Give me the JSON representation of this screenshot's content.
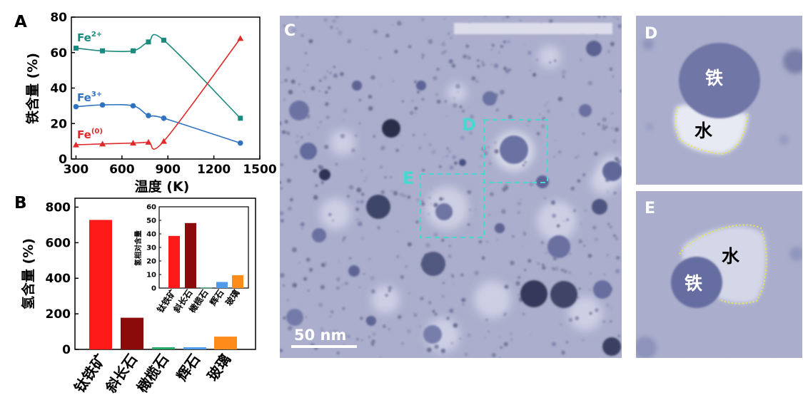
{
  "colors": {
    "fe2": "#1a8a7e",
    "fe3": "#2f72c0",
    "fe0": "#e02a2a",
    "micrograph_bg": "#a7abcb",
    "dash": "#48d8d2",
    "outline": "#e8e84a"
  },
  "chart_data": [
    {
      "panel": "A",
      "type": "line",
      "xlabel": "温度 (K)",
      "ylabel": "铁含量 (%)",
      "xlim": [
        270,
        1500
      ],
      "ylim": [
        0,
        80
      ],
      "xticks": [
        "300",
        "600",
        "900",
        "1200",
        "1500"
      ],
      "xtick_values": [
        300,
        600,
        900,
        1200,
        1500
      ],
      "yticks": [
        "0",
        "20",
        "40",
        "60",
        "80"
      ],
      "ytick_values": [
        0,
        20,
        40,
        60,
        80
      ],
      "series": [
        {
          "name": "Fe",
          "sup": "2+",
          "color": "#1a8a7e",
          "marker": "square",
          "x": [
            300,
            473,
            673,
            773,
            873,
            1373
          ],
          "y": [
            62.5,
            61,
            61,
            66,
            67,
            23
          ]
        },
        {
          "name": "Fe",
          "sup": "3+",
          "color": "#2f72c0",
          "marker": "circle",
          "x": [
            300,
            473,
            673,
            773,
            873,
            1373
          ],
          "y": [
            29.5,
            30.5,
            30,
            24.5,
            23,
            9
          ]
        },
        {
          "name": "Fe",
          "sup": "(0)",
          "color": "#e02a2a",
          "marker": "triangle",
          "x": [
            300,
            473,
            673,
            773,
            873,
            1373
          ],
          "y": [
            8,
            8.5,
            9,
            9.5,
            10,
            68
          ]
        }
      ]
    },
    {
      "panel": "B",
      "type": "bar",
      "ylabel": "氢含量 (%)",
      "ylim": [
        0,
        850
      ],
      "yticks": [
        "0",
        "200",
        "400",
        "600",
        "800"
      ],
      "ytick_values": [
        0,
        200,
        400,
        600,
        800
      ],
      "categories": [
        "钛铁矿",
        "斜长石",
        "橄榄石",
        "辉石",
        "玻璃"
      ],
      "values": [
        728,
        178,
        12,
        12,
        72
      ],
      "colors": [
        "#ff1a1a",
        "#8b0a0a",
        "#22aa66",
        "#4f9bea",
        "#ff8c1a"
      ]
    },
    {
      "panel": "B-inset",
      "type": "bar",
      "ylabel": "氢相对含量",
      "ylim": [
        0,
        60
      ],
      "yticks": [
        "0",
        "10",
        "20",
        "30",
        "40",
        "50",
        "60"
      ],
      "ytick_values": [
        0,
        10,
        20,
        30,
        40,
        50,
        60
      ],
      "categories": [
        "钛铁矿",
        "斜长石",
        "橄榄石",
        "辉石",
        "玻璃"
      ],
      "values": [
        38.5,
        48,
        0.4,
        4.5,
        9.5
      ],
      "colors": [
        "#ff1a1a",
        "#8b0a0a",
        "#22aa66",
        "#4f9bea",
        "#ff8c1a"
      ]
    }
  ],
  "panels": {
    "a": "A",
    "b": "B",
    "c": "C",
    "d": "D",
    "e": "E",
    "box_d": "D",
    "box_e": "E"
  },
  "labels": {
    "scale_bar": "50 nm",
    "iron": "铁",
    "water": "水"
  }
}
